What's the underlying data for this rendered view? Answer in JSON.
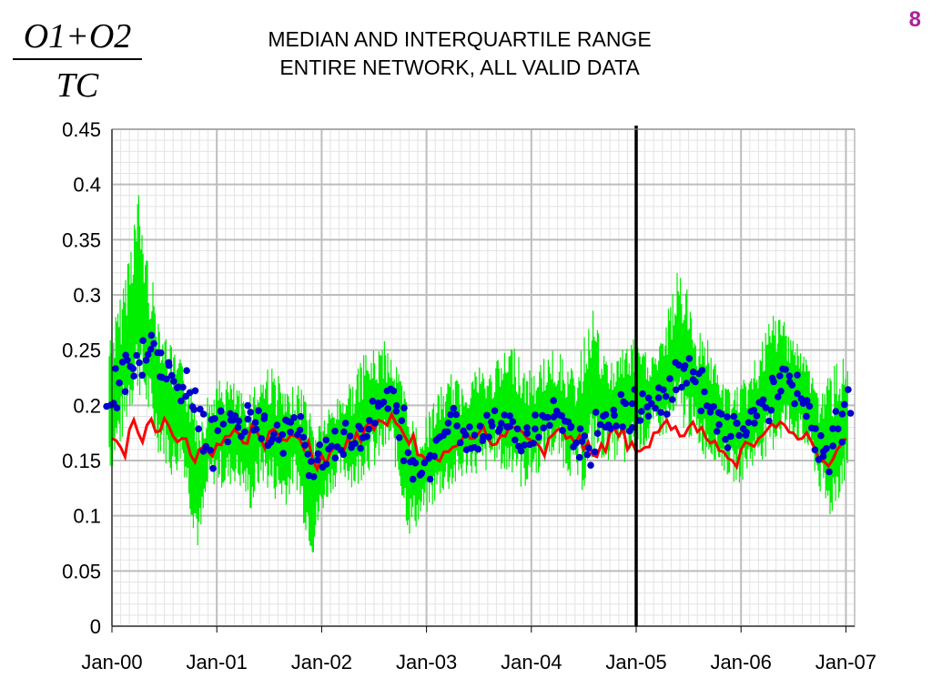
{
  "slide": {
    "number": "8",
    "formula": {
      "numerator": "O1+O2",
      "denominator": "TC"
    }
  },
  "chart_data": {
    "type": "line",
    "title": "MEDIAN AND INTERQUARTILE RANGE",
    "subtitle": "ENTIRE NETWORK, ALL VALID DATA",
    "xlabel": "",
    "ylabel": "",
    "x_ticks": [
      "Jan-00",
      "Jan-01",
      "Jan-02",
      "Jan-03",
      "Jan-04",
      "Jan-05",
      "Jan-06",
      "Jan-07"
    ],
    "y_ticks": [
      "0",
      "0.05",
      "0.1",
      "0.15",
      "0.2",
      "0.25",
      "0.3",
      "0.35",
      "0.4",
      "0.45"
    ],
    "xlim": [
      "2000-01-01",
      "2007-02-01"
    ],
    "ylim": [
      0,
      0.45
    ],
    "grid": true,
    "vertical_marker": "2005-01-01",
    "series": [
      {
        "color": "#00ee00",
        "style": "line",
        "x": [
          "2000-01",
          "2000-02",
          "2000-03",
          "2000-04",
          "2000-05",
          "2000-06",
          "2000-07",
          "2000-08",
          "2000-09",
          "2000-10",
          "2000-11",
          "2000-12",
          "2001-01",
          "2001-02",
          "2001-03",
          "2001-04",
          "2001-05",
          "2001-06",
          "2001-07",
          "2001-08",
          "2001-09",
          "2001-10",
          "2001-11",
          "2001-12",
          "2002-01",
          "2002-02",
          "2002-03",
          "2002-04",
          "2002-05",
          "2002-06",
          "2002-07",
          "2002-08",
          "2002-09",
          "2002-10",
          "2002-11",
          "2002-12",
          "2003-01",
          "2003-02",
          "2003-03",
          "2003-04",
          "2003-05",
          "2003-06",
          "2003-07",
          "2003-08",
          "2003-09",
          "2003-10",
          "2003-11",
          "2003-12",
          "2004-01",
          "2004-02",
          "2004-03",
          "2004-04",
          "2004-05",
          "2004-06",
          "2004-07",
          "2004-08",
          "2004-09",
          "2004-10",
          "2004-11",
          "2004-12",
          "2005-01",
          "2005-02",
          "2005-03",
          "2005-04",
          "2005-05",
          "2005-06",
          "2005-07",
          "2005-08",
          "2005-09",
          "2005-10",
          "2005-11",
          "2005-12",
          "2006-01",
          "2006-02",
          "2006-03",
          "2006-04",
          "2006-05",
          "2006-06",
          "2006-07",
          "2006-08",
          "2006-09",
          "2006-10",
          "2006-11",
          "2006-12",
          "2007-01"
        ],
        "low": [
          0.14,
          0.16,
          0.19,
          0.21,
          0.19,
          0.16,
          0.15,
          0.13,
          0.15,
          0.1,
          0.06,
          0.12,
          0.13,
          0.12,
          0.13,
          0.12,
          0.1,
          0.13,
          0.12,
          0.11,
          0.11,
          0.13,
          0.09,
          0.06,
          0.1,
          0.12,
          0.13,
          0.13,
          0.12,
          0.14,
          0.14,
          0.15,
          0.16,
          0.12,
          0.08,
          0.09,
          0.1,
          0.11,
          0.12,
          0.12,
          0.13,
          0.14,
          0.13,
          0.14,
          0.15,
          0.13,
          0.14,
          0.12,
          0.13,
          0.14,
          0.15,
          0.15,
          0.14,
          0.13,
          0.12,
          0.15,
          0.15,
          0.15,
          0.15,
          0.14,
          0.16,
          0.16,
          0.17,
          0.17,
          0.17,
          0.18,
          0.17,
          0.16,
          0.15,
          0.15,
          0.14,
          0.13,
          0.13,
          0.14,
          0.15,
          0.15,
          0.16,
          0.17,
          0.17,
          0.16,
          0.15,
          0.12,
          0.09,
          0.11,
          0.13
        ],
        "high": [
          0.27,
          0.3,
          0.35,
          0.4,
          0.34,
          0.3,
          0.27,
          0.25,
          0.24,
          0.22,
          0.2,
          0.21,
          0.22,
          0.23,
          0.22,
          0.21,
          0.22,
          0.23,
          0.24,
          0.23,
          0.21,
          0.22,
          0.22,
          0.19,
          0.19,
          0.2,
          0.21,
          0.22,
          0.23,
          0.25,
          0.25,
          0.26,
          0.25,
          0.23,
          0.2,
          0.18,
          0.19,
          0.21,
          0.22,
          0.23,
          0.22,
          0.23,
          0.24,
          0.23,
          0.24,
          0.25,
          0.26,
          0.24,
          0.23,
          0.24,
          0.25,
          0.25,
          0.24,
          0.23,
          0.26,
          0.3,
          0.25,
          0.24,
          0.25,
          0.26,
          0.26,
          0.25,
          0.25,
          0.26,
          0.3,
          0.33,
          0.3,
          0.27,
          0.27,
          0.24,
          0.22,
          0.22,
          0.22,
          0.23,
          0.25,
          0.27,
          0.29,
          0.28,
          0.27,
          0.25,
          0.24,
          0.21,
          0.23,
          0.24,
          0.25
        ]
      },
      {
        "color": "#ff0000",
        "style": "line",
        "x": [
          "2000-01",
          "2000-02",
          "2000-03",
          "2000-04",
          "2000-05",
          "2000-06",
          "2000-07",
          "2000-08",
          "2000-09",
          "2000-10",
          "2000-11",
          "2000-12",
          "2001-01",
          "2001-02",
          "2001-03",
          "2001-04",
          "2001-05",
          "2001-06",
          "2001-07",
          "2001-08",
          "2001-09",
          "2001-10",
          "2001-11",
          "2001-12",
          "2002-01",
          "2002-02",
          "2002-03",
          "2002-04",
          "2002-05",
          "2002-06",
          "2002-07",
          "2002-08",
          "2002-09",
          "2002-10",
          "2002-11",
          "2002-12",
          "2003-01",
          "2003-02",
          "2003-03",
          "2003-04",
          "2003-05",
          "2003-06",
          "2003-07",
          "2003-08",
          "2003-09",
          "2003-10",
          "2003-11",
          "2003-12",
          "2004-01",
          "2004-02",
          "2004-03",
          "2004-04",
          "2004-05",
          "2004-06",
          "2004-07",
          "2004-08",
          "2004-09",
          "2004-10",
          "2004-11",
          "2004-12",
          "2005-01",
          "2005-02",
          "2005-03",
          "2005-04",
          "2005-05",
          "2005-06",
          "2005-07",
          "2005-08",
          "2005-09",
          "2005-10",
          "2005-11",
          "2005-12",
          "2006-01",
          "2006-02",
          "2006-03",
          "2006-04",
          "2006-05",
          "2006-06",
          "2006-07",
          "2006-08",
          "2006-09",
          "2006-10",
          "2006-11",
          "2006-12",
          "2007-01"
        ],
        "values": [
          0.17,
          0.162,
          0.178,
          0.175,
          0.182,
          0.176,
          0.188,
          0.172,
          0.17,
          0.155,
          0.16,
          0.158,
          0.165,
          0.172,
          0.178,
          0.166,
          0.182,
          0.17,
          0.176,
          0.174,
          0.168,
          0.172,
          0.16,
          0.15,
          0.155,
          0.158,
          0.162,
          0.17,
          0.175,
          0.18,
          0.178,
          0.185,
          0.192,
          0.18,
          0.165,
          0.155,
          0.15,
          0.152,
          0.158,
          0.162,
          0.168,
          0.17,
          0.175,
          0.17,
          0.165,
          0.172,
          0.18,
          0.176,
          0.168,
          0.162,
          0.17,
          0.178,
          0.17,
          0.166,
          0.16,
          0.155,
          0.165,
          0.175,
          0.172,
          0.16,
          0.158,
          0.162,
          0.175,
          0.182,
          0.178,
          0.172,
          0.18,
          0.176,
          0.17,
          0.168,
          0.158,
          0.15,
          0.16,
          0.165,
          0.17,
          0.178,
          0.18,
          0.182,
          0.175,
          0.17,
          0.168,
          0.15,
          0.145,
          0.16,
          0.17
        ]
      },
      {
        "color": "#0000cc",
        "style": "scatter",
        "x": [
          "2000-01",
          "2000-02",
          "2000-03",
          "2000-04",
          "2000-05",
          "2000-06",
          "2000-07",
          "2000-08",
          "2000-09",
          "2000-10",
          "2000-11",
          "2000-12",
          "2001-01",
          "2001-02",
          "2001-03",
          "2001-04",
          "2001-05",
          "2001-06",
          "2001-07",
          "2001-08",
          "2001-09",
          "2001-10",
          "2001-11",
          "2001-12",
          "2002-01",
          "2002-02",
          "2002-03",
          "2002-04",
          "2002-05",
          "2002-06",
          "2002-07",
          "2002-08",
          "2002-09",
          "2002-10",
          "2002-11",
          "2002-12",
          "2003-01",
          "2003-02",
          "2003-03",
          "2003-04",
          "2003-05",
          "2003-06",
          "2003-07",
          "2003-08",
          "2003-09",
          "2003-10",
          "2003-11",
          "2003-12",
          "2004-01",
          "2004-02",
          "2004-03",
          "2004-04",
          "2004-05",
          "2004-06",
          "2004-07",
          "2004-08",
          "2004-09",
          "2004-10",
          "2004-11",
          "2004-12",
          "2005-01",
          "2005-02",
          "2005-03",
          "2005-04",
          "2005-05",
          "2005-06",
          "2005-07",
          "2005-08",
          "2005-09",
          "2005-10",
          "2005-11",
          "2005-12",
          "2006-01",
          "2006-02",
          "2006-03",
          "2006-04",
          "2006-05",
          "2006-06",
          "2006-07",
          "2006-08",
          "2006-09",
          "2006-10",
          "2006-11",
          "2006-12",
          "2007-01"
        ],
        "values": [
          0.205,
          0.225,
          0.232,
          0.24,
          0.255,
          0.248,
          0.238,
          0.225,
          0.218,
          0.2,
          0.185,
          0.15,
          0.19,
          0.182,
          0.178,
          0.185,
          0.19,
          0.182,
          0.176,
          0.17,
          0.18,
          0.178,
          0.165,
          0.15,
          0.158,
          0.165,
          0.162,
          0.17,
          0.175,
          0.18,
          0.19,
          0.2,
          0.205,
          0.185,
          0.15,
          0.14,
          0.148,
          0.165,
          0.178,
          0.185,
          0.18,
          0.17,
          0.175,
          0.182,
          0.19,
          0.185,
          0.178,
          0.17,
          0.175,
          0.18,
          0.188,
          0.19,
          0.185,
          0.17,
          0.165,
          0.16,
          0.18,
          0.19,
          0.195,
          0.19,
          0.2,
          0.198,
          0.202,
          0.205,
          0.21,
          0.23,
          0.235,
          0.22,
          0.2,
          0.185,
          0.178,
          0.175,
          0.178,
          0.182,
          0.19,
          0.2,
          0.215,
          0.23,
          0.215,
          0.2,
          0.185,
          0.16,
          0.15,
          0.18,
          0.2
        ]
      }
    ]
  }
}
